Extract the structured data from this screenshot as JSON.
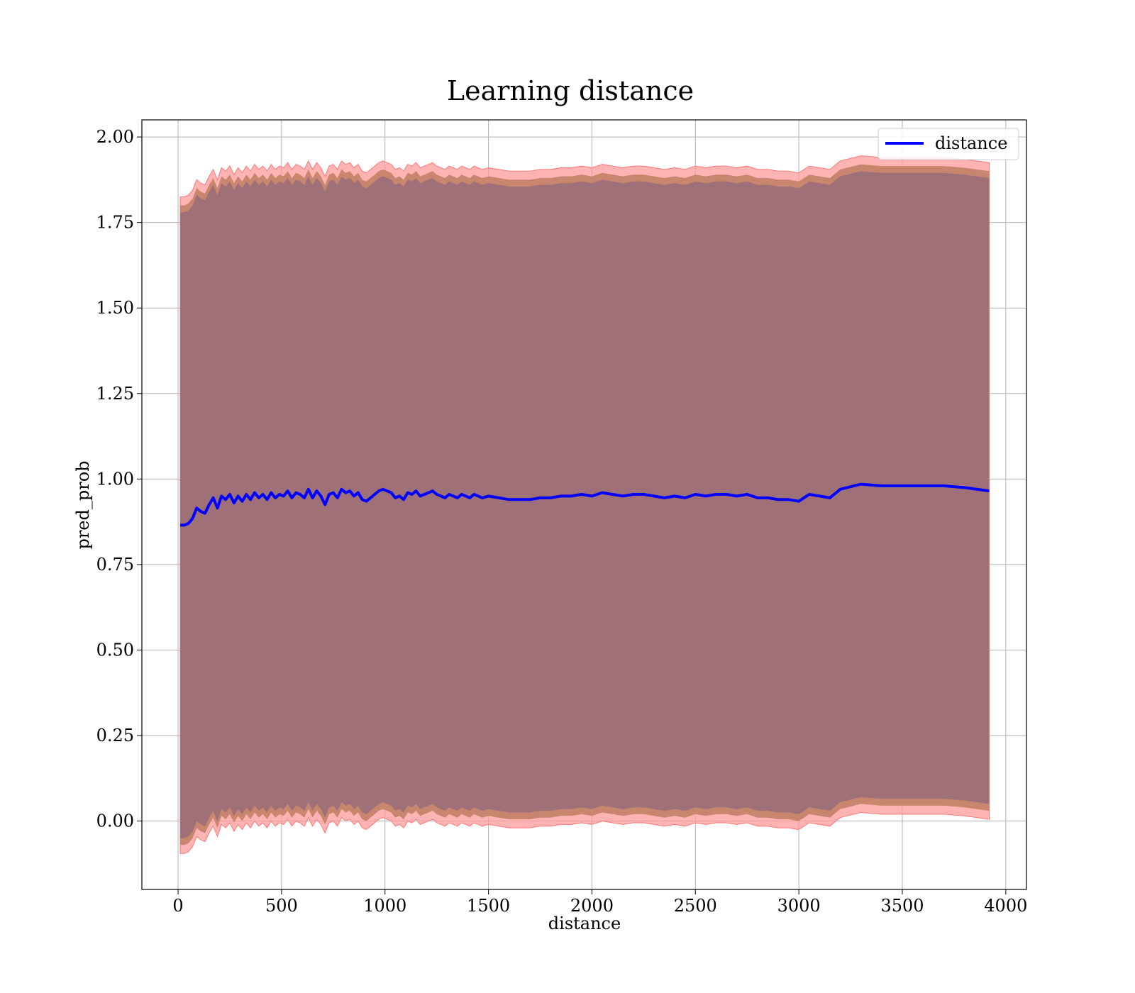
{
  "chart_data": {
    "type": "line",
    "title": "Learning distance",
    "xlabel": "distance",
    "ylabel": "pred_prob",
    "xlim": [
      -175,
      4100
    ],
    "ylim": [
      -0.2,
      2.05
    ],
    "xticks": [
      0,
      500,
      1000,
      1500,
      2000,
      2500,
      3000,
      3500,
      4000
    ],
    "yticks": [
      0.0,
      0.25,
      0.5,
      0.75,
      1.0,
      1.25,
      1.5,
      1.75,
      2.0
    ],
    "xtick_labels": [
      "0",
      "500",
      "1000",
      "1500",
      "2000",
      "2500",
      "3000",
      "3500",
      "4000"
    ],
    "ytick_labels": [
      "0.00",
      "0.25",
      "0.50",
      "0.75",
      "1.00",
      "1.25",
      "1.50",
      "1.75",
      "2.00"
    ],
    "grid": true,
    "legend": {
      "position": "top-right",
      "entries": [
        "distance"
      ]
    },
    "colors": {
      "line": "#0000ff",
      "band_outer": "#ff9999",
      "band_mid": "#c8866e",
      "band_inner": "#a07078",
      "grid": "#b0b0b0"
    },
    "series": [
      {
        "name": "distance",
        "x": [
          10,
          30,
          50,
          70,
          90,
          110,
          130,
          150,
          170,
          190,
          210,
          230,
          250,
          270,
          290,
          310,
          330,
          350,
          370,
          390,
          410,
          430,
          450,
          470,
          490,
          510,
          530,
          550,
          570,
          590,
          610,
          630,
          650,
          670,
          690,
          710,
          730,
          750,
          770,
          790,
          810,
          830,
          850,
          870,
          890,
          910,
          930,
          950,
          970,
          990,
          1010,
          1030,
          1050,
          1070,
          1090,
          1110,
          1130,
          1150,
          1170,
          1190,
          1210,
          1230,
          1250,
          1270,
          1290,
          1310,
          1330,
          1350,
          1370,
          1390,
          1410,
          1430,
          1450,
          1470,
          1500,
          1550,
          1600,
          1650,
          1700,
          1750,
          1800,
          1850,
          1900,
          1950,
          2000,
          2050,
          2100,
          2150,
          2200,
          2250,
          2300,
          2350,
          2400,
          2450,
          2500,
          2550,
          2600,
          2650,
          2700,
          2750,
          2800,
          2850,
          2900,
          2950,
          3000,
          3050,
          3100,
          3150,
          3200,
          3300,
          3400,
          3500,
          3600,
          3700,
          3800,
          3920
        ],
        "y": [
          0.865,
          0.865,
          0.87,
          0.885,
          0.915,
          0.905,
          0.9,
          0.925,
          0.945,
          0.915,
          0.95,
          0.94,
          0.955,
          0.93,
          0.95,
          0.935,
          0.955,
          0.94,
          0.96,
          0.945,
          0.955,
          0.94,
          0.96,
          0.945,
          0.955,
          0.95,
          0.965,
          0.945,
          0.96,
          0.955,
          0.945,
          0.97,
          0.945,
          0.965,
          0.95,
          0.925,
          0.955,
          0.96,
          0.945,
          0.97,
          0.96,
          0.965,
          0.95,
          0.96,
          0.94,
          0.935,
          0.945,
          0.955,
          0.965,
          0.97,
          0.965,
          0.96,
          0.945,
          0.95,
          0.94,
          0.96,
          0.955,
          0.965,
          0.95,
          0.955,
          0.96,
          0.965,
          0.955,
          0.95,
          0.945,
          0.955,
          0.95,
          0.945,
          0.955,
          0.95,
          0.945,
          0.955,
          0.95,
          0.945,
          0.95,
          0.945,
          0.94,
          0.94,
          0.94,
          0.945,
          0.945,
          0.95,
          0.95,
          0.955,
          0.95,
          0.96,
          0.955,
          0.95,
          0.955,
          0.955,
          0.95,
          0.945,
          0.95,
          0.945,
          0.955,
          0.95,
          0.955,
          0.955,
          0.95,
          0.955,
          0.945,
          0.945,
          0.94,
          0.94,
          0.935,
          0.955,
          0.95,
          0.945,
          0.97,
          0.985,
          0.98,
          0.98,
          0.98,
          0.98,
          0.975,
          0.965
        ],
        "outer_halfwidth": 0.96,
        "mid_halfwidth": 0.935,
        "inner_halfwidth": 0.915
      }
    ]
  }
}
